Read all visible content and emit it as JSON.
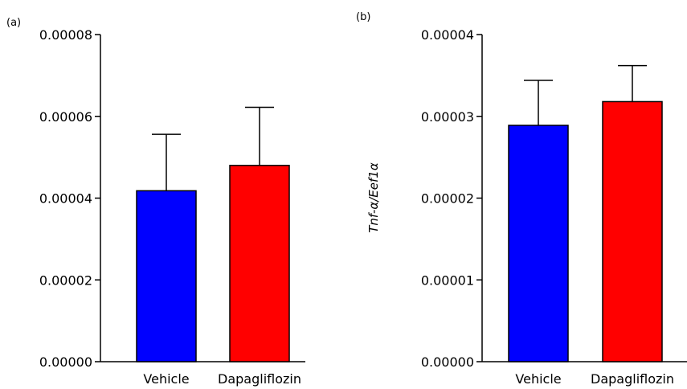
{
  "chart_data": [
    {
      "type": "bar",
      "panel_label": "(a)",
      "ylabel": "",
      "ylim": [
        0,
        8e-05
      ],
      "yticks": [
        "0.00000",
        "0.00002",
        "0.00004",
        "0.00006",
        "0.00008"
      ],
      "ytick_values": [
        0,
        2e-05,
        4e-05,
        6e-05,
        8e-05
      ],
      "categories": [
        "Vehicle",
        "Dapagliflozin"
      ],
      "values": [
        4.18e-05,
        4.8e-05
      ],
      "errors": [
        1.38e-05,
        1.42e-05
      ],
      "colors": [
        "#0000ff",
        "#ff0000"
      ],
      "grid": false
    },
    {
      "type": "bar",
      "panel_label": "(b)",
      "ylabel": "Tnf-α/Eef1α",
      "ylim": [
        0,
        4e-05
      ],
      "yticks": [
        "0.00000",
        "0.00001",
        "0.00002",
        "0.00003",
        "0.00004"
      ],
      "ytick_values": [
        0,
        1e-05,
        2e-05,
        3e-05,
        4e-05
      ],
      "categories": [
        "Vehicle",
        "Dapagliflozin"
      ],
      "values": [
        2.89e-05,
        3.18e-05
      ],
      "errors": [
        5.5e-06,
        4.4e-06
      ],
      "colors": [
        "#0000ff",
        "#ff0000"
      ],
      "grid": false
    }
  ]
}
